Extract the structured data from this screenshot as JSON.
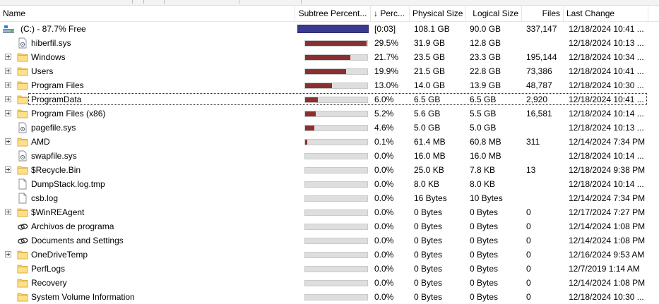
{
  "columns": {
    "name": "Name",
    "subtree_percent": "Subtree Percent...",
    "sort_percent": "↓ Perc...",
    "physical_size": "Physical Size",
    "logical_size": "Logical Size",
    "files": "Files",
    "last_change": "Last Change"
  },
  "root": {
    "label": "(C:) - 87.7% Free",
    "percent": "[0:03]",
    "physical": "108.1 GB",
    "logical": "90.0 GB",
    "files": "337,147",
    "last_change": "12/18/2024  10:41 ..."
  },
  "rows": [
    {
      "name": "hiberfil.sys",
      "type": "sysfile",
      "expandable": false,
      "fraction": 0.295,
      "percent": "29.5%",
      "physical": "31.9 GB",
      "logical": "12.8 GB",
      "files": "",
      "last_change": "12/18/2024  10:13 ..."
    },
    {
      "name": "Windows",
      "type": "folder",
      "expandable": true,
      "fraction": 0.217,
      "percent": "21.7%",
      "physical": "23.5 GB",
      "logical": "23.3 GB",
      "files": "195,144",
      "last_change": "12/18/2024  10:34 ..."
    },
    {
      "name": "Users",
      "type": "folder",
      "expandable": true,
      "fraction": 0.199,
      "percent": "19.9%",
      "physical": "21.5 GB",
      "logical": "22.8 GB",
      "files": "73,386",
      "last_change": "12/18/2024  10:41 ..."
    },
    {
      "name": "Program Files",
      "type": "folder",
      "expandable": true,
      "fraction": 0.13,
      "percent": "13.0%",
      "physical": "14.0 GB",
      "logical": "13.9 GB",
      "files": "48,787",
      "last_change": "12/18/2024  10:30 ..."
    },
    {
      "name": "ProgramData",
      "type": "folder",
      "expandable": true,
      "fraction": 0.06,
      "percent": "6.0%",
      "physical": "6.5 GB",
      "logical": "6.5 GB",
      "files": "2,920",
      "last_change": "12/18/2024  10:41 ...",
      "focused": true
    },
    {
      "name": "Program Files (x86)",
      "type": "folder",
      "expandable": true,
      "fraction": 0.052,
      "percent": "5.2%",
      "physical": "5.6 GB",
      "logical": "5.5 GB",
      "files": "16,581",
      "last_change": "12/18/2024  10:14 ..."
    },
    {
      "name": "pagefile.sys",
      "type": "sysfile",
      "expandable": false,
      "fraction": 0.046,
      "percent": "4.6%",
      "physical": "5.0 GB",
      "logical": "5.0 GB",
      "files": "",
      "last_change": "12/18/2024  10:13 ..."
    },
    {
      "name": "AMD",
      "type": "folder",
      "expandable": true,
      "fraction": 0.001,
      "percent": "0.1%",
      "physical": "61.4 MB",
      "logical": "60.8 MB",
      "files": "311",
      "last_change": "12/14/2024  7:34 PM"
    },
    {
      "name": "swapfile.sys",
      "type": "sysfile",
      "expandable": false,
      "fraction": 0.0,
      "percent": "0.0%",
      "physical": "16.0 MB",
      "logical": "16.0 MB",
      "files": "",
      "last_change": "12/18/2024  10:14 ..."
    },
    {
      "name": "$Recycle.Bin",
      "type": "folder",
      "expandable": true,
      "fraction": 0.0,
      "percent": "0.0%",
      "physical": "25.0 KB",
      "logical": "7.8 KB",
      "files": "13",
      "last_change": "12/18/2024  9:38 PM"
    },
    {
      "name": "DumpStack.log.tmp",
      "type": "file",
      "expandable": false,
      "fraction": 0.0,
      "percent": "0.0%",
      "physical": "8.0 KB",
      "logical": "8.0 KB",
      "files": "",
      "last_change": "12/18/2024  10:14 ..."
    },
    {
      "name": "csb.log",
      "type": "file",
      "expandable": false,
      "fraction": 0.0,
      "percent": "0.0%",
      "physical": "16 Bytes",
      "logical": "10 Bytes",
      "files": "",
      "last_change": "12/14/2024  7:34 PM"
    },
    {
      "name": "$WinREAgent",
      "type": "folder",
      "expandable": true,
      "fraction": 0.0,
      "percent": "0.0%",
      "physical": "0 Bytes",
      "logical": "0 Bytes",
      "files": "0",
      "last_change": "12/17/2024  7:27 PM"
    },
    {
      "name": "Archivos de programa",
      "type": "link",
      "expandable": false,
      "fraction": 0.0,
      "percent": "0.0%",
      "physical": "0 Bytes",
      "logical": "0 Bytes",
      "files": "0",
      "last_change": "12/14/2024  1:08 PM"
    },
    {
      "name": "Documents and Settings",
      "type": "link",
      "expandable": false,
      "fraction": 0.0,
      "percent": "0.0%",
      "physical": "0 Bytes",
      "logical": "0 Bytes",
      "files": "0",
      "last_change": "12/14/2024  1:08 PM"
    },
    {
      "name": "OneDriveTemp",
      "type": "folder",
      "expandable": true,
      "fraction": 0.0,
      "percent": "0.0%",
      "physical": "0 Bytes",
      "logical": "0 Bytes",
      "files": "0",
      "last_change": "12/16/2024  9:53 AM"
    },
    {
      "name": "PerfLogs",
      "type": "folder",
      "expandable": false,
      "fraction": 0.0,
      "percent": "0.0%",
      "physical": "0 Bytes",
      "logical": "0 Bytes",
      "files": "0",
      "last_change": "12/7/2019  1:14 AM"
    },
    {
      "name": "Recovery",
      "type": "folder",
      "expandable": false,
      "fraction": 0.0,
      "percent": "0.0%",
      "physical": "0 Bytes",
      "logical": "0 Bytes",
      "files": "0",
      "last_change": "12/14/2024  1:08 PM"
    },
    {
      "name": "System Volume Information",
      "type": "folder",
      "expandable": false,
      "fraction": 0.0,
      "percent": "0.0%",
      "physical": "0 Bytes",
      "logical": "0 Bytes",
      "files": "0",
      "last_change": "12/18/2024  10:30 ..."
    }
  ],
  "colors": {
    "bar_fill": "#8b2f2f",
    "bar_bg": "#dedede",
    "root_bar": "#3a3a91",
    "folder": "#f6d365"
  },
  "icons": {
    "folder": "folder-icon",
    "sysfile": "system-file-icon",
    "file": "file-icon",
    "link": "junction-link-icon",
    "drive": "drive-icon"
  }
}
